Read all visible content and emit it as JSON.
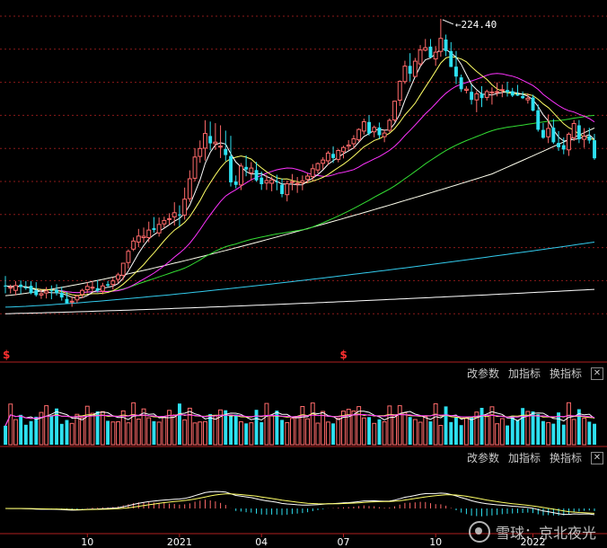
{
  "chart_data": {
    "type": "candlestick",
    "peak_label": "224.40",
    "x_ticks": [
      "10",
      "2021",
      "04",
      "07",
      "10",
      "2022"
    ],
    "split_marks": [
      "$",
      "$"
    ],
    "colors": {
      "up": "#ff6a6a",
      "down": "#2de0f0",
      "ma5": "#ffffff",
      "ma10": "#ffff66",
      "ma20": "#ff33ff",
      "ma60": "#33dd33",
      "ma120": "#ffffee",
      "ma250": "#33ccee",
      "ma_long": "#ffffff",
      "grid": "#8b1a1a",
      "divider": "#b02020",
      "dif": "#ffffff",
      "dea": "#ffff66"
    },
    "ohlc": [
      [
        62.1,
        67.9,
        57.4,
        61.9
      ],
      [
        60.6,
        62.7,
        57.3,
        61.1
      ],
      [
        59.2,
        64.8,
        56.2,
        62.1
      ],
      [
        62.7,
        65.2,
        57.1,
        61.2
      ],
      [
        61.0,
        64.9,
        59.5,
        60.5
      ],
      [
        62.0,
        64.8,
        56.8,
        57.5
      ],
      [
        59.2,
        64.2,
        55.4,
        56.3
      ],
      [
        56.4,
        59.6,
        54.0,
        57.2
      ],
      [
        57.6,
        61.2,
        54.3,
        58.8
      ],
      [
        59.2,
        62.2,
        53.8,
        58.9
      ],
      [
        59.7,
        62.9,
        56.1,
        57.5
      ],
      [
        57.7,
        61.4,
        53.0,
        54.9
      ],
      [
        54.0,
        58.1,
        50.9,
        51.3
      ],
      [
        52.1,
        55.4,
        49.2,
        52.6
      ],
      [
        53.4,
        56.5,
        51.5,
        55.8
      ],
      [
        56.7,
        60.2,
        54.4,
        59.2
      ],
      [
        59.6,
        64.1,
        57.5,
        61.6
      ],
      [
        60.9,
        64.9,
        58.1,
        61.1
      ],
      [
        60.5,
        65.5,
        57.9,
        58.9
      ],
      [
        58.8,
        63.8,
        56.8,
        61.9
      ],
      [
        62.9,
        64.9,
        61.0,
        62.0
      ],
      [
        62.8,
        67.2,
        59.7,
        65.0
      ],
      [
        65.9,
        69.9,
        63.4,
        68.6
      ],
      [
        68.4,
        75.8,
        65.6,
        75.7
      ],
      [
        76.1,
        84.1,
        72.5,
        82.9
      ],
      [
        84.3,
        91.4,
        83.1,
        89.2
      ],
      [
        88.6,
        96.6,
        85.5,
        92.2
      ],
      [
        91.3,
        97.4,
        88.1,
        92.1
      ],
      [
        91.3,
        101.0,
        88.4,
        95.9
      ],
      [
        97.1,
        103.8,
        94.3,
        95.9
      ],
      [
        94.1,
        103.5,
        91.9,
        99.3
      ],
      [
        99.6,
        104.0,
        97.4,
        101.7
      ],
      [
        102.4,
        106.1,
        99.0,
        102.8
      ],
      [
        103.9,
        112.8,
        98.6,
        106.4
      ],
      [
        105.4,
        110.9,
        98.1,
        104.8
      ],
      [
        105.1,
        121.7,
        102.2,
        114.7
      ],
      [
        115.0,
        132.2,
        113.0,
        127.1
      ],
      [
        127.4,
        145.7,
        125.6,
        140.3
      ],
      [
        140.7,
        150.4,
        136.8,
        145.5
      ],
      [
        145.7,
        162.7,
        138.1,
        154.6
      ],
      [
        153.1,
        161.9,
        144.4,
        148.6
      ],
      [
        148.4,
        160.9,
        144.6,
        149.4
      ],
      [
        146.7,
        159.6,
        139.7,
        146.9
      ],
      [
        145.2,
        156.4,
        137.9,
        141.5
      ],
      [
        140.9,
        153.2,
        122.4,
        124.9
      ],
      [
        125.4,
        129.1,
        121.3,
        123.4
      ],
      [
        123.3,
        136.6,
        120.2,
        134.8
      ],
      [
        134.3,
        141.3,
        128.6,
        132.7
      ],
      [
        130.7,
        137.2,
        126.1,
        133.6
      ],
      [
        132.4,
        137.3,
        125.3,
        126.1
      ],
      [
        127.8,
        131.5,
        120.3,
        123.8
      ],
      [
        124.5,
        129.4,
        120.3,
        126.0
      ],
      [
        124.3,
        128.4,
        119.5,
        126.4
      ],
      [
        125.5,
        129.5,
        120.1,
        125.3
      ],
      [
        123.5,
        127.2,
        115.8,
        117.8
      ],
      [
        117.4,
        126.0,
        113.3,
        124.0
      ],
      [
        125.2,
        130.0,
        120.1,
        125.4
      ],
      [
        124.3,
        128.2,
        118.5,
        124.3
      ],
      [
        124.7,
        129.1,
        120.1,
        125.8
      ],
      [
        126.7,
        130.3,
        124.4,
        128.7
      ],
      [
        128.4,
        136.0,
        125.8,
        133.2
      ],
      [
        132.4,
        137.0,
        130.4,
        136.3
      ],
      [
        136.5,
        140.2,
        132.8,
        138.5
      ],
      [
        138.0,
        144.1,
        135.4,
        142.7
      ],
      [
        142.2,
        146.8,
        136.7,
        139.7
      ],
      [
        138.9,
        145.0,
        137.1,
        144.3
      ],
      [
        143.6,
        147.2,
        139.5,
        146.1
      ],
      [
        146.9,
        150.6,
        144.4,
        147.6
      ],
      [
        148.4,
        153.6,
        145.3,
        151.4
      ],
      [
        150.8,
        157.8,
        149.8,
        157.1
      ],
      [
        156.1,
        163.7,
        153.9,
        161.8
      ],
      [
        161.6,
        165.8,
        153.4,
        154.6
      ],
      [
        155.7,
        159.5,
        152.3,
        158.3
      ],
      [
        158.3,
        161.3,
        151.5,
        153.6
      ],
      [
        152.7,
        157.1,
        149.3,
        154.9
      ],
      [
        156.6,
        163.8,
        155.4,
        162.6
      ],
      [
        162.9,
        174.6,
        161.7,
        174.3
      ],
      [
        174.9,
        186.9,
        171.4,
        186.3
      ],
      [
        186.2,
        198.9,
        184.8,
        195.6
      ],
      [
        195.8,
        203.5,
        186.2,
        191.0
      ],
      [
        189.3,
        200.6,
        188.9,
        198.6
      ],
      [
        197.0,
        208.4,
        195.6,
        205.4
      ],
      [
        205.3,
        212.1,
        204.6,
        206.8
      ],
      [
        207.5,
        212.1,
        200.6,
        200.9
      ],
      [
        200.0,
        207.8,
        195.8,
        204.1
      ],
      [
        204.6,
        224.4,
        201.3,
        212.5
      ],
      [
        211.8,
        214.8,
        201.7,
        204.8
      ],
      [
        204.8,
        210.2,
        195.0,
        195.1
      ],
      [
        195.3,
        204.8,
        184.7,
        189.3
      ],
      [
        188.8,
        190.5,
        179.9,
        181.6
      ],
      [
        180.9,
        183.4,
        179.0,
        181.6
      ],
      [
        180.0,
        184.3,
        172.3,
        175.1
      ],
      [
        175.1,
        180.5,
        167.6,
        178.8
      ],
      [
        178.8,
        183.4,
        170.7,
        176.2
      ],
      [
        176.6,
        181.3,
        174.7,
        180.1
      ],
      [
        179.4,
        182.7,
        172.2,
        179.9
      ],
      [
        180.1,
        185.7,
        177.2,
        180.1
      ],
      [
        180.9,
        184.4,
        176.7,
        181.3
      ],
      [
        181.0,
        186.1,
        177.1,
        179.7
      ],
      [
        180.3,
        182.4,
        176.8,
        177.7
      ],
      [
        178.5,
        184.2,
        177.4,
        177.6
      ],
      [
        177.4,
        180.2,
        175.6,
        176.1
      ],
      [
        175.1,
        179.0,
        172.8,
        176.1
      ],
      [
        176.5,
        178.2,
        168.1,
        168.5
      ],
      [
        168.7,
        172.2,
        155.8,
        156.9
      ],
      [
        156.8,
        161.0,
        151.4,
        152.0
      ],
      [
        152.6,
        166.2,
        148.8,
        157.7
      ],
      [
        158.2,
        163.4,
        148.3,
        149.3
      ],
      [
        148.9,
        156.1,
        144.1,
        146.3
      ],
      [
        147.5,
        152.2,
        142.0,
        144.9
      ],
      [
        144.7,
        155.3,
        141.0,
        154.2
      ],
      [
        152.1,
        162.8,
        150.1,
        160.7
      ],
      [
        159.6,
        162.8,
        148.8,
        151.2
      ],
      [
        151.1,
        157.9,
        146.0,
        152.9
      ],
      [
        152.9,
        158.1,
        148.5,
        150.4
      ],
      [
        150.5,
        154.4,
        138.6,
        139.5
      ]
    ]
  }
}
